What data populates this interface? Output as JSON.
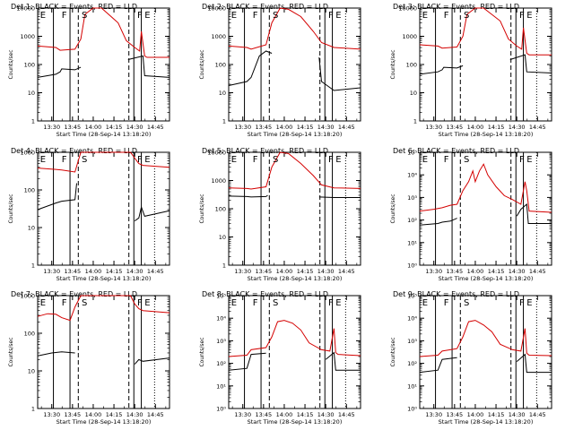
{
  "x_tick_labels": [
    "13:30",
    "13:45",
    "14:00",
    "14:15",
    "14:30",
    "14:45"
  ],
  "x_axis_label": "Start Time (28-Sep-14 13:18:20)",
  "y_axis_label": "Counts/sec",
  "colors": {
    "events": "#000000",
    "lld": "#d40000",
    "markers": "#000000"
  },
  "chart_data": [
    {
      "type": "line",
      "title": "Det 1: BLACK = Events, RED = LLD",
      "yscale": "log",
      "ylim": [
        1,
        10000
      ],
      "y_tick_labels": [
        "1",
        "10",
        "100",
        "1000",
        "10000"
      ],
      "xlim": [
        13.33,
        14.92
      ],
      "marker_letters": [
        "E",
        "F",
        "S",
        "F",
        "E"
      ],
      "series": [
        {
          "name": "Events",
          "x": [
            13.33,
            13.55,
            13.6,
            13.62,
            13.78,
            13.85,
            13.86,
            14.4,
            14.42,
            14.6,
            14.62,
            14.92
          ],
          "y": [
            35,
            45,
            55,
            70,
            65,
            80,
            null,
            null,
            150,
            200,
            40,
            35
          ]
        },
        {
          "name": "LLD",
          "x": [
            13.33,
            13.55,
            13.6,
            13.78,
            13.85,
            13.9,
            14.0,
            14.1,
            14.3,
            14.4,
            14.5,
            14.56,
            14.58,
            14.62,
            14.65,
            14.92
          ],
          "y": [
            450,
            400,
            320,
            350,
            800,
            6000,
            10000,
            10000,
            3000,
            700,
            400,
            300,
            1500,
            200,
            180,
            180
          ]
        }
      ]
    },
    {
      "type": "line",
      "title": "Det 2: BLACK = Events, RED = LLD",
      "yscale": "log",
      "ylim": [
        1,
        10000
      ],
      "y_tick_labels": [
        "1",
        "10",
        "100",
        "1000",
        "10000"
      ],
      "xlim": [
        13.33,
        14.92
      ],
      "marker_letters": [
        "E",
        "F",
        "S",
        "F",
        "E"
      ],
      "series": [
        {
          "name": "Events",
          "x": [
            13.33,
            13.55,
            13.6,
            13.7,
            13.78,
            13.85,
            13.86,
            14.4,
            14.42,
            14.45,
            14.6,
            14.92
          ],
          "y": [
            18,
            25,
            35,
            200,
            300,
            250,
            null,
            null,
            180,
            25,
            12,
            15
          ]
        },
        {
          "name": "LLD",
          "x": [
            13.33,
            13.55,
            13.6,
            13.78,
            13.85,
            13.95,
            14.05,
            14.2,
            14.35,
            14.45,
            14.6,
            14.92
          ],
          "y": [
            450,
            400,
            350,
            500,
            3000,
            10000,
            9000,
            5000,
            1500,
            600,
            400,
            350
          ]
        }
      ]
    },
    {
      "type": "line",
      "title": "Det 3: BLACK = Events, RED = LLD",
      "yscale": "log",
      "ylim": [
        1,
        10000
      ],
      "y_tick_labels": [
        "1",
        "10",
        "100",
        "1000",
        "10000"
      ],
      "xlim": [
        13.33,
        14.92
      ],
      "marker_letters": [
        "E",
        "F",
        "S",
        "F",
        "E"
      ],
      "series": [
        {
          "name": "Events",
          "x": [
            13.33,
            13.55,
            13.6,
            13.62,
            13.78,
            13.85,
            13.86,
            14.4,
            14.42,
            14.6,
            14.62,
            14.92
          ],
          "y": [
            45,
            55,
            65,
            80,
            75,
            90,
            null,
            null,
            150,
            220,
            55,
            50
          ]
        },
        {
          "name": "LLD",
          "x": [
            13.33,
            13.55,
            13.6,
            13.78,
            13.85,
            13.9,
            14.0,
            14.1,
            14.3,
            14.4,
            14.5,
            14.56,
            14.58,
            14.62,
            14.65,
            14.92
          ],
          "y": [
            500,
            450,
            380,
            420,
            1000,
            6000,
            10000,
            10000,
            3500,
            800,
            450,
            350,
            2000,
            250,
            220,
            220
          ]
        }
      ]
    },
    {
      "type": "line",
      "title": "Det 4: BLACK = Events, RED = LLD",
      "yscale": "log",
      "ylim": [
        1,
        1000
      ],
      "y_tick_labels": [
        "1",
        "10",
        "100",
        "1000"
      ],
      "xlim": [
        13.33,
        14.92
      ],
      "marker_letters": [
        "E",
        "F",
        "S",
        "F",
        "E"
      ],
      "series": [
        {
          "name": "Events",
          "x": [
            13.33,
            13.55,
            13.62,
            13.78,
            13.8,
            13.82,
            14.48,
            14.5,
            14.55,
            14.58,
            14.62,
            14.92
          ],
          "y": [
            30,
            45,
            50,
            55,
            150,
            null,
            null,
            15,
            18,
            35,
            20,
            28
          ]
        },
        {
          "name": "LLD",
          "x": [
            13.33,
            13.55,
            13.62,
            13.78,
            13.82,
            13.85,
            14.45,
            14.5,
            14.55,
            14.6,
            14.92
          ],
          "y": [
            380,
            350,
            340,
            300,
            600,
            1000,
            1000,
            700,
            500,
            450,
            400
          ]
        }
      ]
    },
    {
      "type": "line",
      "title": "Det 5: BLACK = Events, RED = LLD",
      "yscale": "log",
      "ylim": [
        1,
        10000
      ],
      "y_tick_labels": [
        "1",
        "10",
        "100",
        "1000",
        "10000"
      ],
      "xlim": [
        13.33,
        14.92
      ],
      "marker_letters": [
        "E",
        "F",
        "S",
        "F",
        "E"
      ],
      "series": [
        {
          "name": "Events",
          "x": [
            13.33,
            13.55,
            13.6,
            13.78,
            13.8,
            13.82,
            14.4,
            14.42,
            14.6,
            14.92
          ],
          "y": [
            280,
            270,
            260,
            270,
            300,
            null,
            null,
            260,
            250,
            250
          ]
        },
        {
          "name": "LLD",
          "x": [
            13.33,
            13.55,
            13.6,
            13.78,
            13.85,
            13.95,
            14.05,
            14.2,
            14.35,
            14.45,
            14.6,
            14.92
          ],
          "y": [
            550,
            520,
            500,
            600,
            3000,
            10000,
            9000,
            4000,
            1500,
            700,
            550,
            520
          ]
        }
      ]
    },
    {
      "type": "line",
      "title": "Det 6: BLACK = Events, RED = LLD",
      "yscale": "log",
      "ylim": [
        1,
        100000
      ],
      "y_tick_labels": [
        "10⁰",
        "10¹",
        "10²",
        "10³",
        "10⁴",
        "10⁵"
      ],
      "xlim": [
        13.33,
        14.92
      ],
      "marker_letters": [
        "E",
        "F",
        "S",
        "F",
        "E"
      ],
      "series": [
        {
          "name": "Events",
          "x": [
            13.33,
            13.55,
            13.6,
            13.7,
            13.78,
            13.8,
            14.48,
            14.5,
            14.55,
            14.62,
            14.64,
            14.92
          ],
          "y": [
            60,
            70,
            80,
            90,
            120,
            null,
            null,
            150,
            300,
            500,
            70,
            70
          ]
        },
        {
          "name": "LLD",
          "x": [
            13.33,
            13.5,
            13.6,
            13.7,
            13.78,
            13.85,
            13.92,
            13.97,
            14.0,
            14.05,
            14.1,
            14.15,
            14.25,
            14.35,
            14.45,
            14.55,
            14.6,
            14.62,
            14.65,
            14.92
          ],
          "y": [
            250,
            300,
            350,
            450,
            500,
            2000,
            5000,
            15000,
            5000,
            15000,
            30000,
            10000,
            3000,
            1200,
            800,
            500,
            5000,
            2000,
            250,
            220
          ]
        }
      ]
    },
    {
      "type": "line",
      "title": "Det 7: BLACK = Events, RED = LLD",
      "yscale": "log",
      "ylim": [
        1,
        1000
      ],
      "y_tick_labels": [
        "1",
        "10",
        "100",
        "1000"
      ],
      "xlim": [
        13.33,
        14.92
      ],
      "marker_letters": [
        "E",
        "F",
        "S",
        "F",
        "E"
      ],
      "series": [
        {
          "name": "Events",
          "x": [
            13.33,
            13.5,
            13.62,
            13.78,
            13.8,
            14.48,
            14.5,
            14.55,
            14.6,
            14.92
          ],
          "y": [
            25,
            30,
            32,
            30,
            null,
            null,
            15,
            20,
            18,
            22
          ]
        },
        {
          "name": "LLD",
          "x": [
            13.33,
            13.45,
            13.55,
            13.62,
            13.72,
            13.78,
            13.85,
            14.45,
            14.5,
            14.55,
            14.6,
            14.92
          ],
          "y": [
            280,
            330,
            320,
            260,
            220,
            500,
            1000,
            1000,
            600,
            450,
            400,
            350
          ]
        }
      ]
    },
    {
      "type": "line",
      "title": "Det 8: BLACK = Events, RED = LLD",
      "yscale": "log",
      "ylim": [
        1,
        100000
      ],
      "y_tick_labels": [
        "10⁰",
        "10¹",
        "10²",
        "10³",
        "10⁴",
        "10⁵"
      ],
      "xlim": [
        13.33,
        14.92
      ],
      "marker_letters": [
        "E",
        "F",
        "S",
        "F",
        "E"
      ],
      "series": [
        {
          "name": "Events",
          "x": [
            13.33,
            13.55,
            13.6,
            13.78,
            13.8,
            14.48,
            14.5,
            14.6,
            14.62,
            14.92
          ],
          "y": [
            50,
            60,
            250,
            280,
            null,
            null,
            150,
            300,
            50,
            50
          ]
        },
        {
          "name": "LLD",
          "x": [
            13.33,
            13.55,
            13.6,
            13.78,
            13.85,
            13.92,
            14.0,
            14.1,
            14.2,
            14.3,
            14.45,
            14.55,
            14.6,
            14.62,
            14.65,
            14.92
          ],
          "y": [
            200,
            230,
            400,
            500,
            1500,
            7000,
            8000,
            6000,
            3000,
            800,
            400,
            350,
            3500,
            300,
            250,
            220
          ]
        }
      ]
    },
    {
      "type": "line",
      "title": "Det 9: BLACK = Events, RED = LLD",
      "yscale": "log",
      "ylim": [
        1,
        100000
      ],
      "y_tick_labels": [
        "10⁰",
        "10¹",
        "10²",
        "10³",
        "10⁴",
        "10⁵"
      ],
      "xlim": [
        13.33,
        14.92
      ],
      "marker_letters": [
        "E",
        "F",
        "S",
        "F",
        "E"
      ],
      "series": [
        {
          "name": "Events",
          "x": [
            13.33,
            13.55,
            13.6,
            13.78,
            13.8,
            14.48,
            14.5,
            14.6,
            14.62,
            14.92
          ],
          "y": [
            40,
            50,
            150,
            180,
            null,
            null,
            120,
            250,
            40,
            40
          ]
        },
        {
          "name": "LLD",
          "x": [
            13.33,
            13.55,
            13.6,
            13.78,
            13.85,
            13.92,
            14.0,
            14.1,
            14.2,
            14.3,
            14.45,
            14.55,
            14.6,
            14.62,
            14.65,
            14.92
          ],
          "y": [
            200,
            230,
            350,
            450,
            1500,
            7000,
            8000,
            5000,
            2500,
            700,
            400,
            350,
            3500,
            280,
            230,
            220
          ]
        }
      ]
    }
  ]
}
